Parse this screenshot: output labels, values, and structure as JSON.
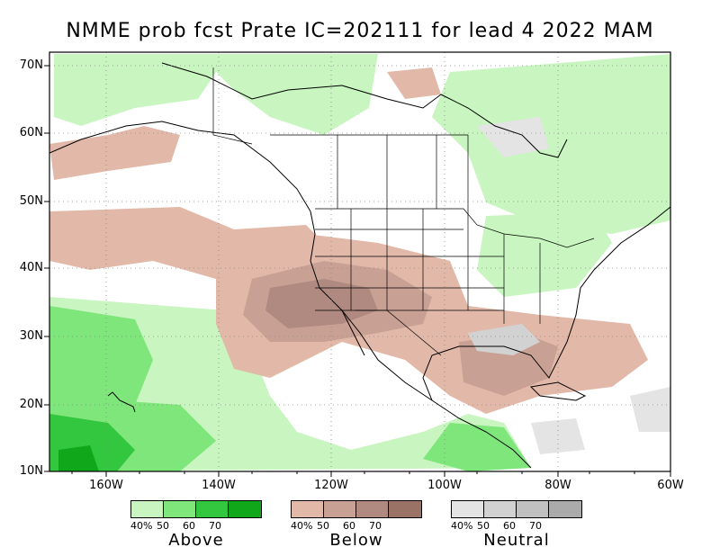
{
  "title": "NMME prob fcst Prate IC=202111 for lead 4 2022 MAM",
  "lat_labels": [
    "70N",
    "60N",
    "50N",
    "40N",
    "30N",
    "20N",
    "10N"
  ],
  "lon_labels": [
    "160W",
    "140W",
    "120W",
    "100W",
    "80W",
    "60W"
  ],
  "colors": {
    "above": [
      "#c8f5c0",
      "#7ee67a",
      "#33c63f",
      "#10a81a"
    ],
    "below": [
      "#e2b8a8",
      "#c9a194",
      "#b08a80",
      "#9a7266"
    ],
    "neutral": [
      "#e4e4e4",
      "#d2d2d2",
      "#c0c0c0",
      "#ababab"
    ]
  },
  "legend": {
    "above": {
      "label": "Above",
      "ticks": [
        "40%",
        "50",
        "60",
        "70"
      ]
    },
    "below": {
      "label": "Below",
      "ticks": [
        "40%",
        "50",
        "60",
        "70"
      ]
    },
    "neutral": {
      "label": "Neutral",
      "ticks": [
        "40%",
        "50",
        "60",
        "70"
      ]
    }
  }
}
